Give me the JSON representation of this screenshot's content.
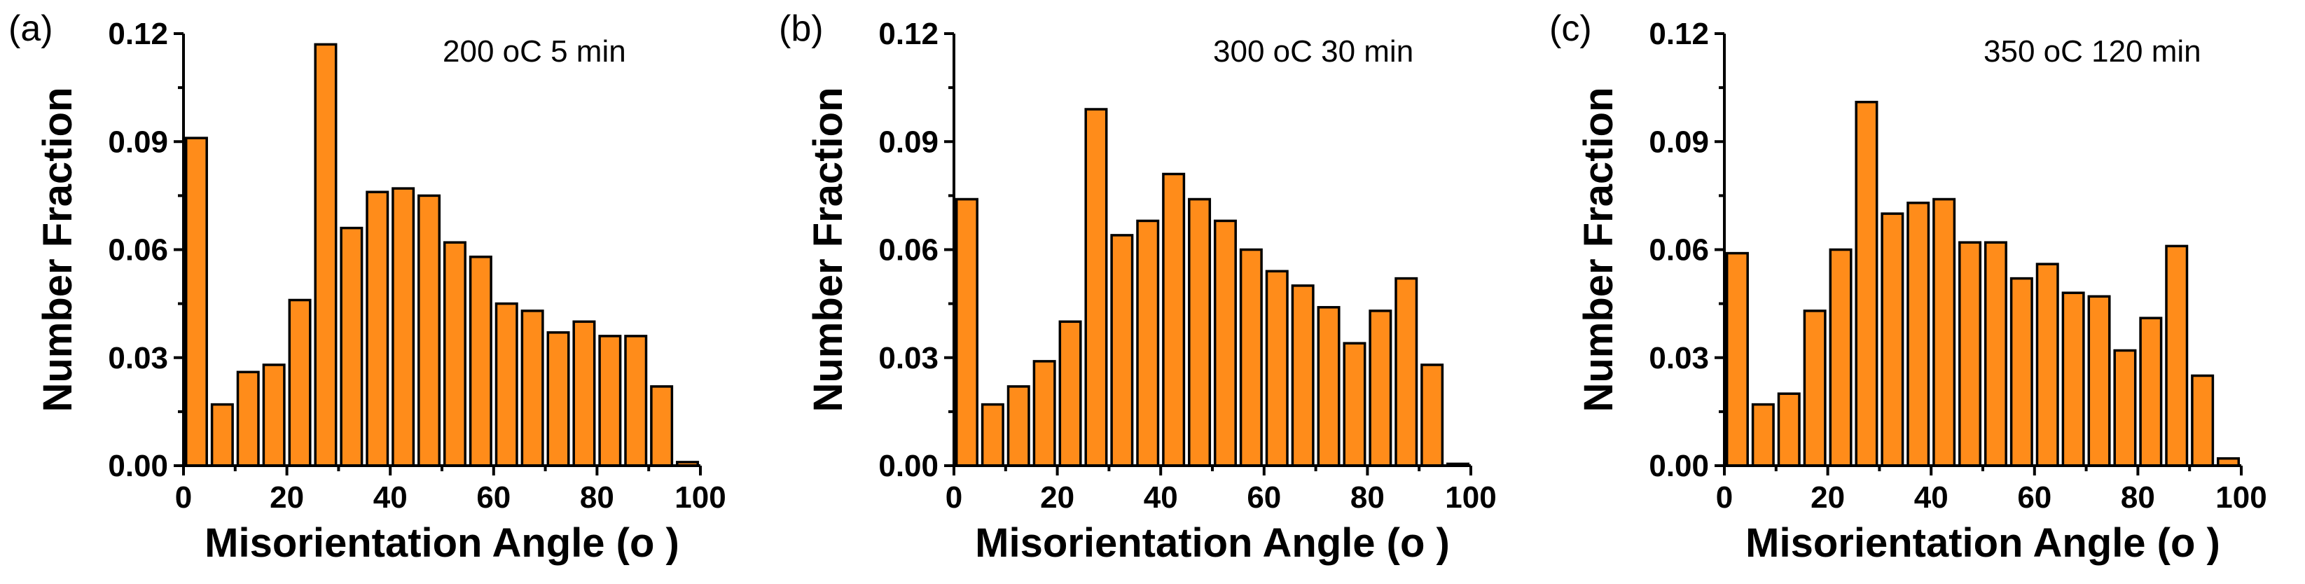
{
  "chart_data": [
    {
      "type": "bar",
      "panel_label": "(a)",
      "annotation": "200 oC  5 min",
      "xlabel": "Misorientation Angle (o )",
      "ylabel": "Number Fraction",
      "xlim": [
        0,
        100
      ],
      "ylim": [
        0,
        0.12
      ],
      "x_ticks": [
        "0",
        "20",
        "40",
        "60",
        "80",
        "100"
      ],
      "y_ticks": [
        "0.00",
        "0.03",
        "0.06",
        "0.09",
        "0.12"
      ],
      "bar_color": "#FF8C1A",
      "x": [
        5,
        10,
        15,
        20,
        25,
        30,
        35,
        40,
        45,
        50,
        55,
        60,
        65,
        70,
        75,
        80,
        85,
        90,
        95,
        100
      ],
      "values": [
        0.091,
        0.017,
        0.026,
        0.028,
        0.046,
        0.117,
        0.066,
        0.076,
        0.077,
        0.075,
        0.062,
        0.058,
        0.045,
        0.043,
        0.037,
        0.04,
        0.036,
        0.036,
        0.022,
        0.001
      ]
    },
    {
      "type": "bar",
      "panel_label": "(b)",
      "annotation": "300 oC  30 min",
      "xlabel": "Misorientation Angle (o )",
      "ylabel": "Number Fraction",
      "xlim": [
        0,
        100
      ],
      "ylim": [
        0,
        0.12
      ],
      "x_ticks": [
        "0",
        "20",
        "40",
        "60",
        "80",
        "100"
      ],
      "y_ticks": [
        "0.00",
        "0.03",
        "0.06",
        "0.09",
        "0.12"
      ],
      "bar_color": "#FF8C1A",
      "x": [
        5,
        10,
        15,
        20,
        25,
        30,
        35,
        40,
        45,
        50,
        55,
        60,
        65,
        70,
        75,
        80,
        85,
        90,
        95,
        100
      ],
      "values": [
        0.074,
        0.017,
        0.022,
        0.029,
        0.04,
        0.099,
        0.064,
        0.068,
        0.081,
        0.074,
        0.068,
        0.06,
        0.054,
        0.05,
        0.044,
        0.034,
        0.043,
        0.052,
        0.028,
        0.0005
      ]
    },
    {
      "type": "bar",
      "panel_label": "(c)",
      "annotation": "350 oC  120 min",
      "xlabel": "Misorientation Angle (o )",
      "ylabel": "Number Fraction",
      "xlim": [
        0,
        100
      ],
      "ylim": [
        0,
        0.12
      ],
      "x_ticks": [
        "0",
        "20",
        "40",
        "60",
        "80",
        "100"
      ],
      "y_ticks": [
        "0.00",
        "0.03",
        "0.06",
        "0.09",
        "0.12"
      ],
      "bar_color": "#FF8C1A",
      "x": [
        5,
        10,
        15,
        20,
        25,
        30,
        35,
        40,
        45,
        50,
        55,
        60,
        65,
        70,
        75,
        80,
        85,
        90,
        95,
        100
      ],
      "values": [
        0.059,
        0.017,
        0.02,
        0.043,
        0.06,
        0.101,
        0.07,
        0.073,
        0.074,
        0.062,
        0.062,
        0.052,
        0.056,
        0.048,
        0.047,
        0.032,
        0.041,
        0.061,
        0.025,
        0.002
      ]
    }
  ]
}
